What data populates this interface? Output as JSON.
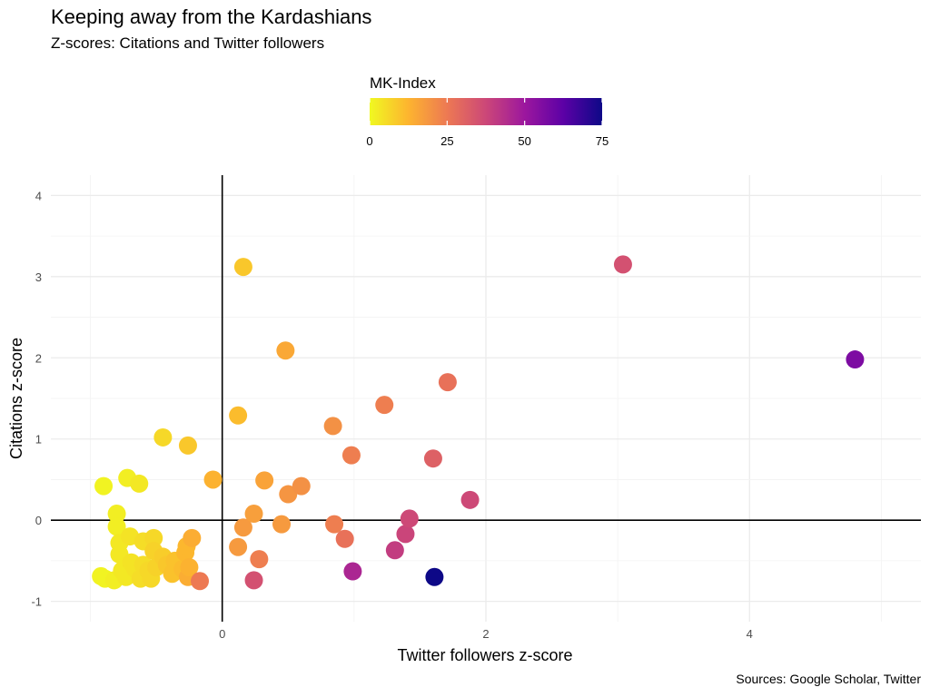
{
  "title": "Keeping away from the Kardashians",
  "subtitle": "Z-scores: Citations and Twitter followers",
  "caption": "Sources: Google Scholar, Twitter",
  "chart_data": {
    "type": "scatter",
    "xlabel": "Twitter followers z-score",
    "ylabel": "Citations z-score",
    "xlim": [
      -1.3,
      5.3
    ],
    "ylim": [
      -1.25,
      4.25
    ],
    "x_ticks": [
      0,
      2,
      4
    ],
    "y_ticks": [
      -1,
      0,
      1,
      2,
      3,
      4
    ],
    "reference_lines": {
      "x": 0,
      "y": 0
    },
    "grid": true,
    "legend": {
      "title": "MK-Index",
      "type": "colorbar",
      "position": "top",
      "range": [
        0,
        75
      ],
      "ticks": [
        0,
        25,
        50,
        75
      ],
      "palette": [
        "#f0f921",
        "#fdb42f",
        "#ed7953",
        "#cc4778",
        "#9c179e",
        "#5c01a6",
        "#0d0887"
      ]
    },
    "points": [
      {
        "x": -0.9,
        "y": 0.42,
        "mk": 1
      },
      {
        "x": -0.92,
        "y": -0.69,
        "mk": 1
      },
      {
        "x": -0.89,
        "y": -0.72,
        "mk": 1
      },
      {
        "x": -0.82,
        "y": -0.74,
        "mk": 2
      },
      {
        "x": -0.8,
        "y": 0.08,
        "mk": 2
      },
      {
        "x": -0.8,
        "y": -0.08,
        "mk": 2
      },
      {
        "x": -0.78,
        "y": -0.28,
        "mk": 3
      },
      {
        "x": -0.78,
        "y": -0.42,
        "mk": 3
      },
      {
        "x": -0.76,
        "y": -0.62,
        "mk": 3
      },
      {
        "x": -0.73,
        "y": -0.7,
        "mk": 3
      },
      {
        "x": -0.72,
        "y": 0.52,
        "mk": 2
      },
      {
        "x": -0.7,
        "y": -0.2,
        "mk": 4
      },
      {
        "x": -0.69,
        "y": -0.52,
        "mk": 4
      },
      {
        "x": -0.66,
        "y": -0.6,
        "mk": 4
      },
      {
        "x": -0.63,
        "y": 0.45,
        "mk": 3
      },
      {
        "x": -0.62,
        "y": -0.72,
        "mk": 5
      },
      {
        "x": -0.6,
        "y": -0.55,
        "mk": 5
      },
      {
        "x": -0.6,
        "y": -0.26,
        "mk": 5
      },
      {
        "x": -0.56,
        "y": -0.62,
        "mk": 6
      },
      {
        "x": -0.54,
        "y": -0.72,
        "mk": 6
      },
      {
        "x": -0.52,
        "y": -0.22,
        "mk": 6
      },
      {
        "x": -0.52,
        "y": -0.38,
        "mk": 7
      },
      {
        "x": -0.5,
        "y": -0.58,
        "mk": 7
      },
      {
        "x": -0.45,
        "y": 1.02,
        "mk": 6
      },
      {
        "x": -0.45,
        "y": -0.45,
        "mk": 8
      },
      {
        "x": -0.42,
        "y": -0.55,
        "mk": 9
      },
      {
        "x": -0.38,
        "y": -0.66,
        "mk": 10
      },
      {
        "x": -0.36,
        "y": -0.5,
        "mk": 10
      },
      {
        "x": -0.3,
        "y": -0.6,
        "mk": 11
      },
      {
        "x": -0.28,
        "y": -0.4,
        "mk": 12
      },
      {
        "x": -0.27,
        "y": -0.32,
        "mk": 12
      },
      {
        "x": -0.26,
        "y": 0.92,
        "mk": 9
      },
      {
        "x": -0.26,
        "y": -0.7,
        "mk": 14
      },
      {
        "x": -0.25,
        "y": -0.58,
        "mk": 13
      },
      {
        "x": -0.23,
        "y": -0.22,
        "mk": 14
      },
      {
        "x": -0.17,
        "y": -0.75,
        "mk": 25
      },
      {
        "x": -0.07,
        "y": 0.5,
        "mk": 13
      },
      {
        "x": 0.12,
        "y": 1.29,
        "mk": 11
      },
      {
        "x": 0.16,
        "y": 3.12,
        "mk": 9
      },
      {
        "x": 0.12,
        "y": -0.33,
        "mk": 18
      },
      {
        "x": 0.16,
        "y": -0.09,
        "mk": 18
      },
      {
        "x": 0.24,
        "y": 0.08,
        "mk": 17
      },
      {
        "x": 0.24,
        "y": -0.74,
        "mk": 35
      },
      {
        "x": 0.28,
        "y": -0.48,
        "mk": 24
      },
      {
        "x": 0.32,
        "y": 0.49,
        "mk": 16
      },
      {
        "x": 0.45,
        "y": -0.05,
        "mk": 18
      },
      {
        "x": 0.48,
        "y": 2.09,
        "mk": 15
      },
      {
        "x": 0.5,
        "y": 0.32,
        "mk": 19
      },
      {
        "x": 0.6,
        "y": 0.42,
        "mk": 20
      },
      {
        "x": 0.84,
        "y": 1.16,
        "mk": 20
      },
      {
        "x": 0.85,
        "y": -0.05,
        "mk": 24
      },
      {
        "x": 0.93,
        "y": -0.23,
        "mk": 27
      },
      {
        "x": 0.98,
        "y": 0.8,
        "mk": 24
      },
      {
        "x": 0.99,
        "y": -0.63,
        "mk": 46
      },
      {
        "x": 1.23,
        "y": 1.42,
        "mk": 24
      },
      {
        "x": 1.31,
        "y": -0.37,
        "mk": 40
      },
      {
        "x": 1.39,
        "y": -0.17,
        "mk": 38
      },
      {
        "x": 1.42,
        "y": 0.02,
        "mk": 37
      },
      {
        "x": 1.6,
        "y": 0.76,
        "mk": 31
      },
      {
        "x": 1.61,
        "y": -0.7,
        "mk": 75
      },
      {
        "x": 1.71,
        "y": 1.7,
        "mk": 27
      },
      {
        "x": 1.88,
        "y": 0.25,
        "mk": 37
      },
      {
        "x": 3.04,
        "y": 3.15,
        "mk": 35
      },
      {
        "x": 4.8,
        "y": 1.98,
        "mk": 56
      }
    ]
  }
}
